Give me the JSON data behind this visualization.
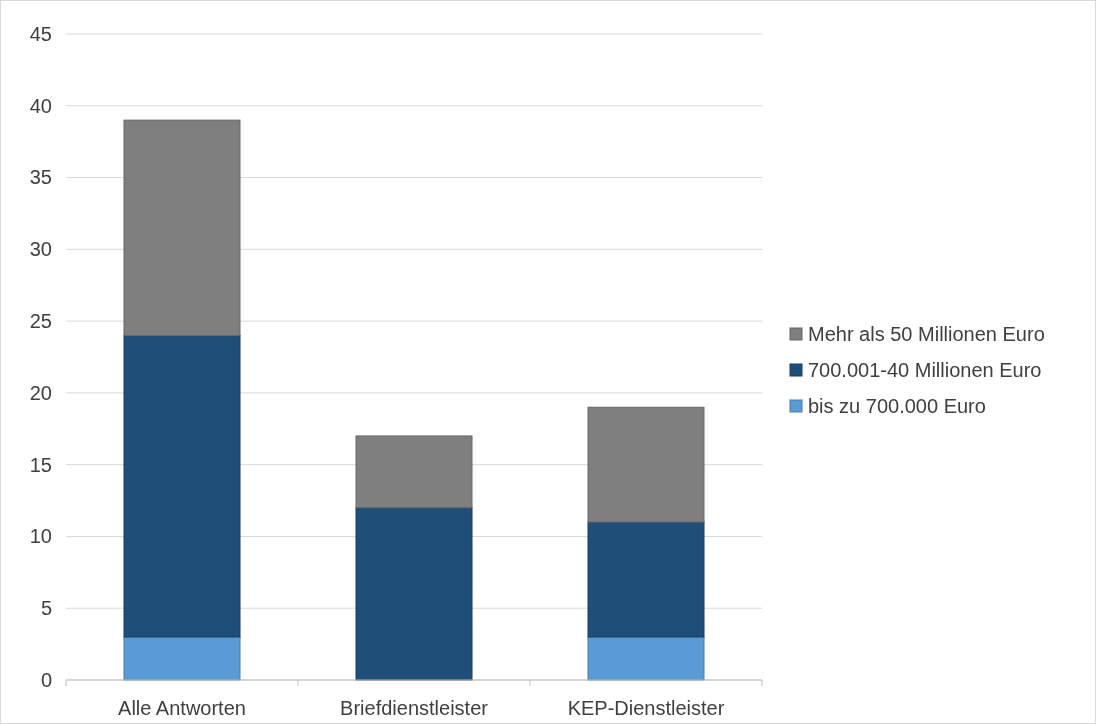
{
  "chart_data": {
    "type": "bar",
    "stacked": true,
    "categories": [
      "Alle Antworten",
      "Briefdienstleister",
      "KEP-Dienstleister"
    ],
    "series": [
      {
        "name": "bis zu 700.000 Euro",
        "color": "#5b9bd5",
        "values": [
          3,
          0,
          3
        ]
      },
      {
        "name": "700.001-40 Millionen Euro",
        "color": "#1f4e79",
        "values": [
          21,
          12,
          8
        ]
      },
      {
        "name": "Mehr als 50 Millionen Euro",
        "color": "#7f7f7f",
        "values": [
          15,
          5,
          8
        ]
      }
    ],
    "ylim": [
      0,
      45
    ],
    "yticks": [
      0,
      5,
      10,
      15,
      20,
      25,
      30,
      35,
      40,
      45
    ],
    "grid": "y",
    "legend": "right"
  }
}
